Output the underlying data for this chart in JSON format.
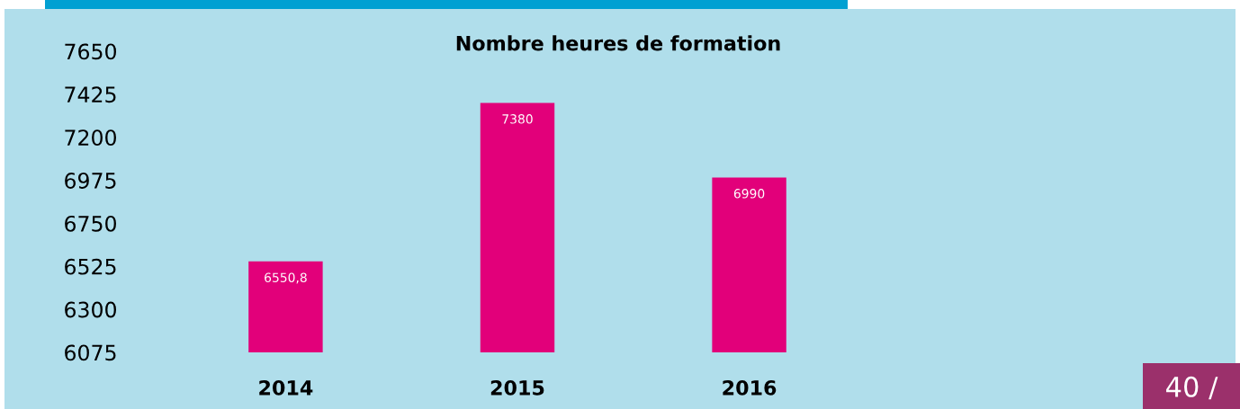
{
  "chart_data": {
    "type": "bar",
    "title": "Nombre heures de formation",
    "categories": [
      "2014",
      "2015",
      "2016"
    ],
    "values": [
      6550.8,
      7380,
      6990
    ],
    "value_labels": [
      "6550,8",
      "7380",
      "6990"
    ],
    "color": "#e2007a",
    "ylim": [
      6075,
      7650
    ],
    "yticks": [
      6075,
      6300,
      6525,
      6750,
      6975,
      7200,
      7425,
      7650
    ],
    "grid": false,
    "legend": false,
    "annotations": [
      "40 /"
    ]
  }
}
